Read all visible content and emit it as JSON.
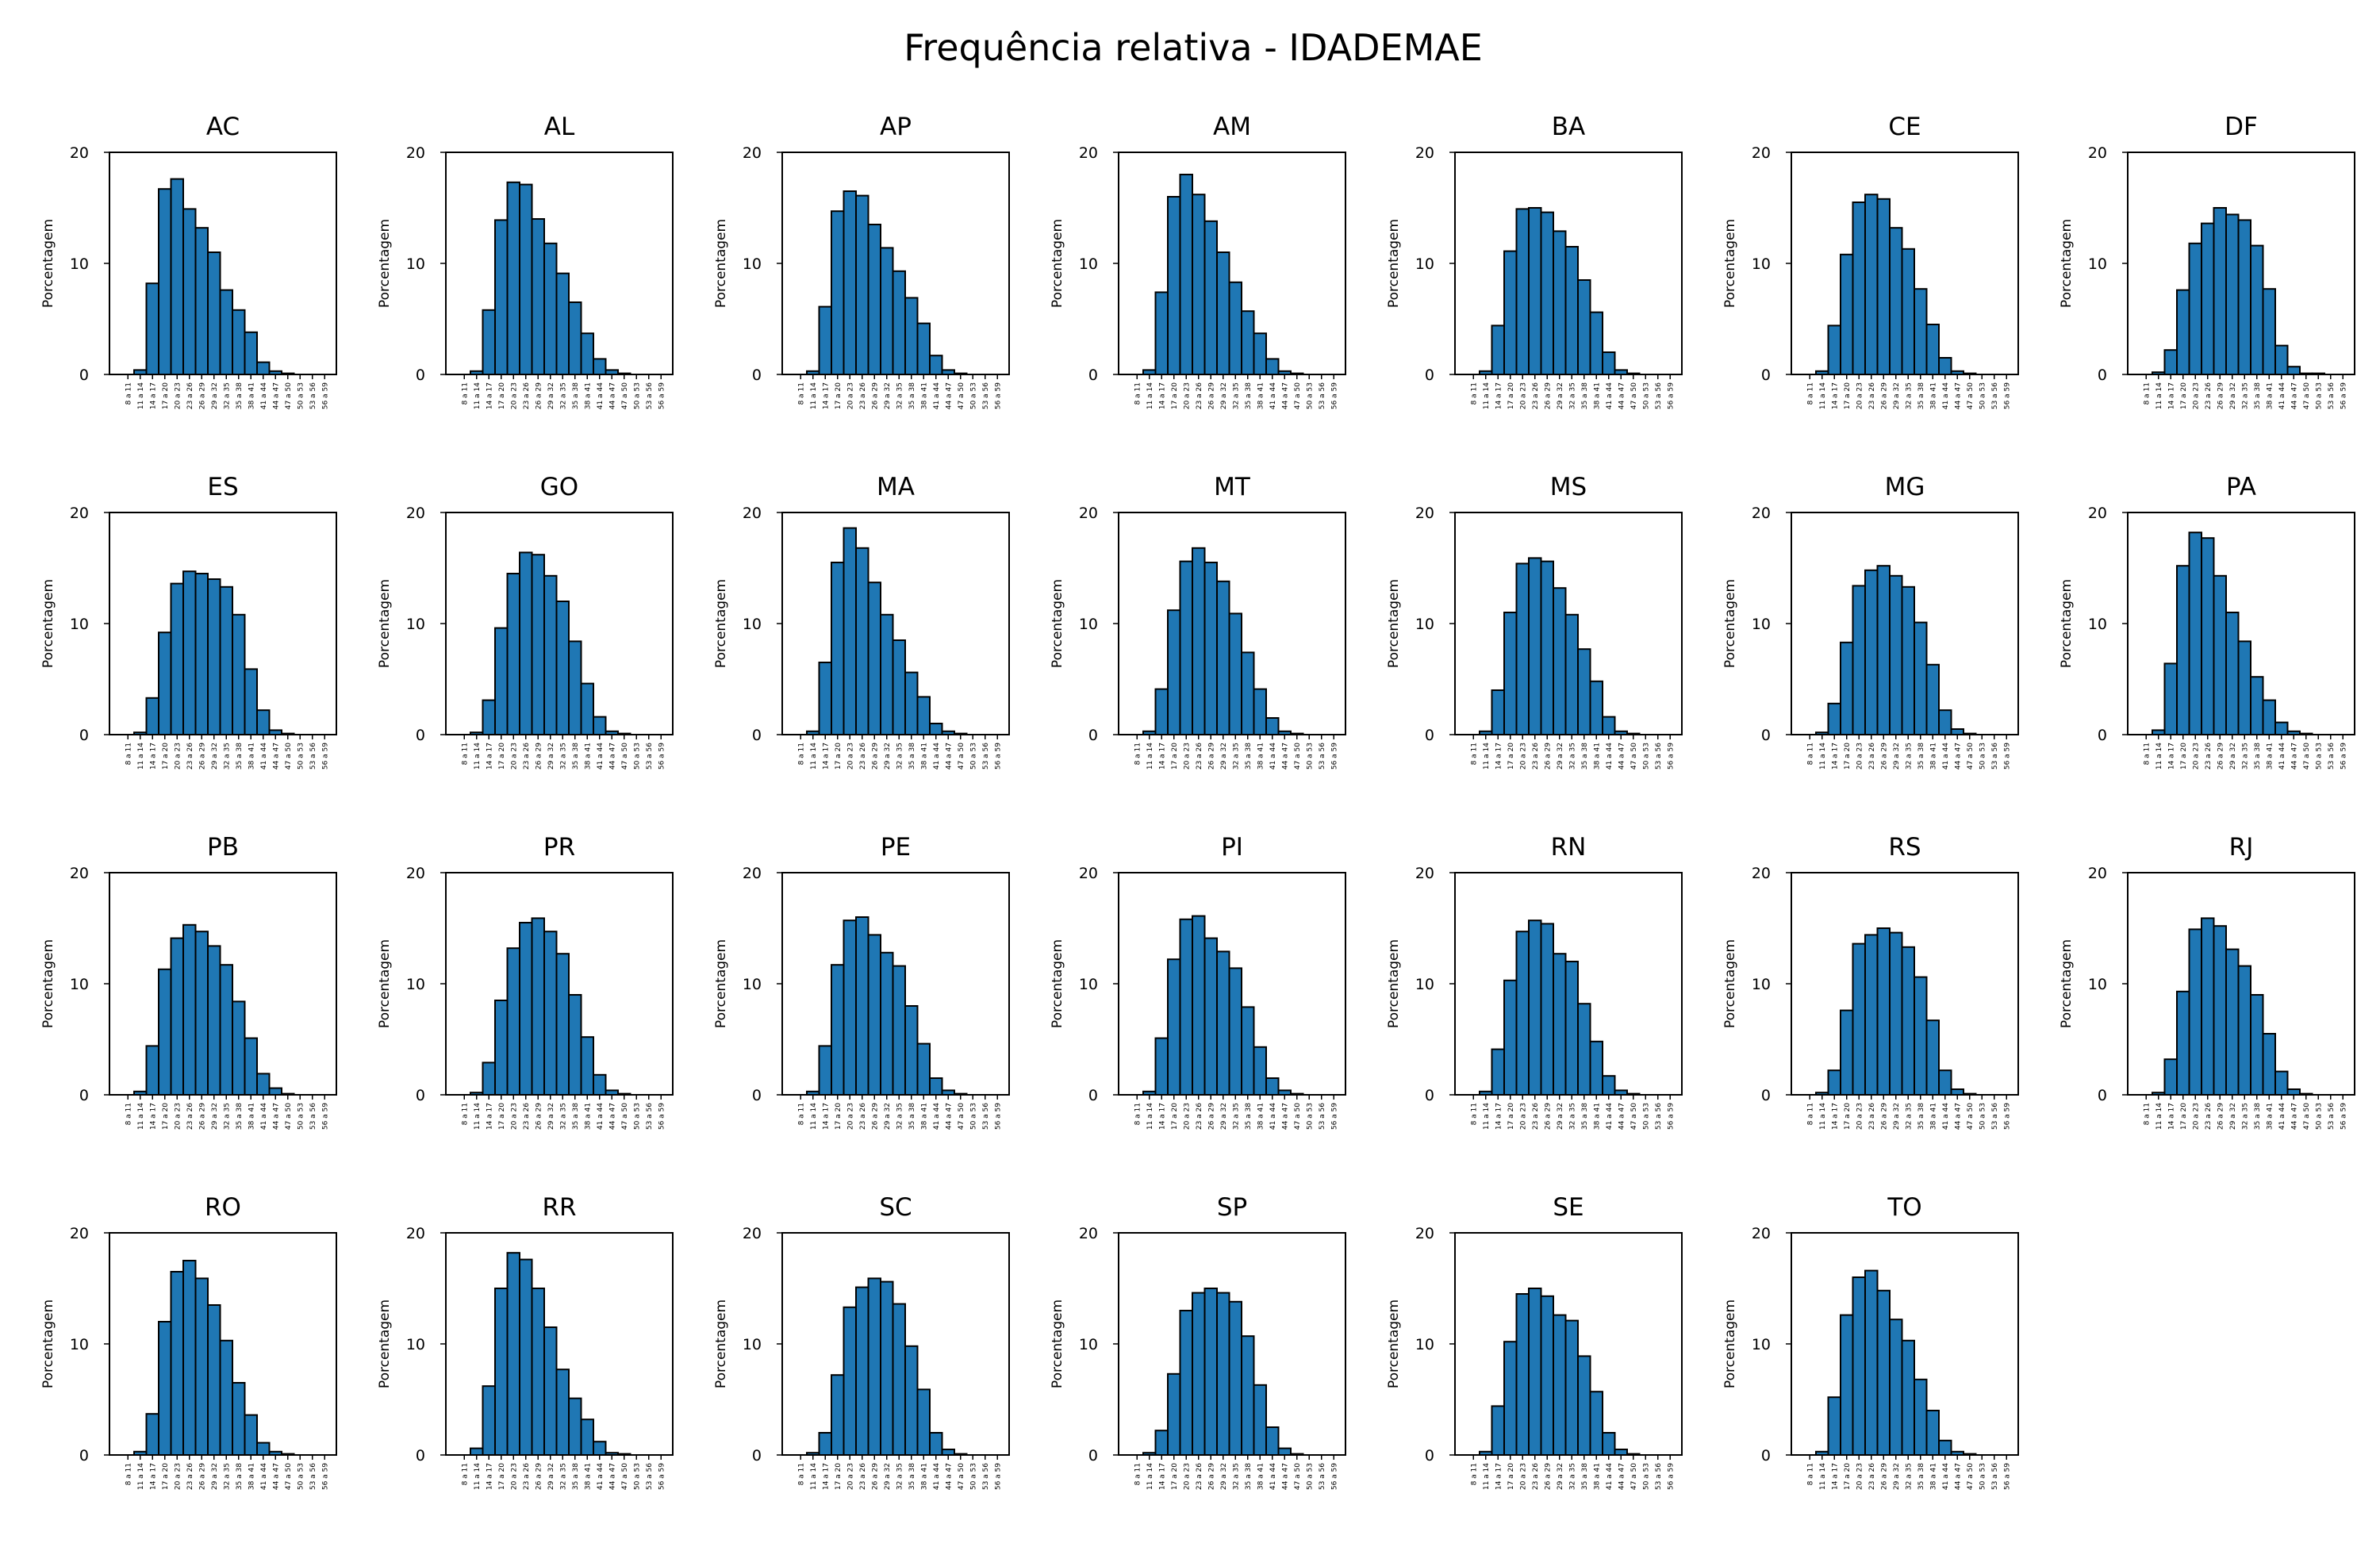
{
  "chart_data": {
    "type": "bar",
    "title": "Frequência relativa - IDADEMAE",
    "ylabel": "Porcentagem",
    "ylim": [
      0,
      20
    ],
    "yticks": [
      0,
      10,
      20
    ],
    "categories": [
      "8 a 11",
      "11 a 14",
      "14 a 17",
      "17 a 20",
      "20 a 23",
      "23 a 26",
      "26 a 29",
      "29 a 32",
      "32 a 35",
      "35 a 38",
      "38 a 41",
      "41 a 44",
      "44 a 47",
      "47 a 50",
      "50 a 53",
      "53 a 56",
      "56 a 59"
    ],
    "bar_color": "#1f77b4",
    "panels": [
      {
        "name": "AC",
        "values": [
          0.0,
          0.4,
          8.2,
          16.7,
          17.6,
          14.9,
          13.2,
          11.0,
          7.6,
          5.8,
          3.8,
          1.1,
          0.3,
          0.1,
          0.0,
          0.0,
          0.0
        ]
      },
      {
        "name": "AL",
        "values": [
          0.0,
          0.3,
          5.8,
          13.9,
          17.3,
          17.1,
          14.0,
          11.8,
          9.1,
          6.5,
          3.7,
          1.4,
          0.4,
          0.1,
          0.0,
          0.0,
          0.0
        ]
      },
      {
        "name": "AP",
        "values": [
          0.0,
          0.3,
          6.1,
          14.7,
          16.5,
          16.1,
          13.5,
          11.4,
          9.3,
          6.9,
          4.6,
          1.7,
          0.4,
          0.1,
          0.0,
          0.0,
          0.0
        ]
      },
      {
        "name": "AM",
        "values": [
          0.0,
          0.4,
          7.4,
          16.0,
          18.0,
          16.2,
          13.8,
          11.0,
          8.3,
          5.7,
          3.7,
          1.4,
          0.3,
          0.1,
          0.0,
          0.0,
          0.0
        ]
      },
      {
        "name": "BA",
        "values": [
          0.0,
          0.3,
          4.4,
          11.1,
          14.9,
          15.0,
          14.6,
          12.9,
          11.5,
          8.5,
          5.6,
          2.0,
          0.4,
          0.1,
          0.0,
          0.0,
          0.0
        ]
      },
      {
        "name": "CE",
        "values": [
          0.0,
          0.3,
          4.4,
          10.8,
          15.5,
          16.2,
          15.8,
          13.2,
          11.3,
          7.7,
          4.5,
          1.5,
          0.3,
          0.1,
          0.0,
          0.0,
          0.0
        ]
      },
      {
        "name": "DF",
        "values": [
          0.0,
          0.2,
          2.2,
          7.6,
          11.8,
          13.6,
          15.0,
          14.4,
          13.9,
          11.6,
          7.7,
          2.6,
          0.7,
          0.1,
          0.1,
          0.0,
          0.0
        ]
      },
      {
        "name": "ES",
        "values": [
          0.0,
          0.2,
          3.3,
          9.2,
          13.6,
          14.7,
          14.5,
          14.0,
          13.3,
          10.8,
          5.9,
          2.2,
          0.4,
          0.1,
          0.0,
          0.0,
          0.0
        ]
      },
      {
        "name": "GO",
        "values": [
          0.0,
          0.2,
          3.1,
          9.6,
          14.5,
          16.4,
          16.2,
          14.3,
          12.0,
          8.4,
          4.6,
          1.6,
          0.3,
          0.1,
          0.0,
          0.0,
          0.0
        ]
      },
      {
        "name": "MA",
        "values": [
          0.0,
          0.3,
          6.5,
          15.5,
          18.6,
          16.8,
          13.7,
          10.8,
          8.5,
          5.6,
          3.4,
          1.0,
          0.3,
          0.1,
          0.0,
          0.0,
          0.0
        ]
      },
      {
        "name": "MT",
        "values": [
          0.0,
          0.3,
          4.1,
          11.2,
          15.6,
          16.8,
          15.5,
          13.8,
          10.9,
          7.4,
          4.1,
          1.5,
          0.3,
          0.1,
          0.0,
          0.0,
          0.0
        ]
      },
      {
        "name": "MS",
        "values": [
          0.0,
          0.3,
          4.0,
          11.0,
          15.4,
          15.9,
          15.6,
          13.2,
          10.8,
          7.7,
          4.8,
          1.6,
          0.3,
          0.1,
          0.0,
          0.0,
          0.0
        ]
      },
      {
        "name": "MG",
        "values": [
          0.0,
          0.2,
          2.8,
          8.3,
          13.4,
          14.8,
          15.2,
          14.3,
          13.3,
          10.1,
          6.3,
          2.2,
          0.5,
          0.1,
          0.0,
          0.0,
          0.0
        ]
      },
      {
        "name": "PA",
        "values": [
          0.0,
          0.4,
          6.4,
          15.2,
          18.2,
          17.7,
          14.3,
          11.0,
          8.4,
          5.2,
          3.1,
          1.1,
          0.3,
          0.1,
          0.0,
          0.0,
          0.0
        ]
      },
      {
        "name": "PB",
        "values": [
          0.0,
          0.3,
          4.4,
          11.3,
          14.1,
          15.3,
          14.7,
          13.4,
          11.7,
          8.4,
          5.1,
          1.9,
          0.6,
          0.1,
          0.0,
          0.0,
          0.0
        ]
      },
      {
        "name": "PR",
        "values": [
          0.0,
          0.2,
          2.9,
          8.5,
          13.2,
          15.5,
          15.9,
          14.7,
          12.7,
          9.0,
          5.2,
          1.8,
          0.4,
          0.1,
          0.0,
          0.0,
          0.0
        ]
      },
      {
        "name": "PE",
        "values": [
          0.0,
          0.3,
          4.4,
          11.7,
          15.7,
          16.0,
          14.4,
          12.8,
          11.6,
          8.0,
          4.6,
          1.5,
          0.4,
          0.1,
          0.0,
          0.0,
          0.0
        ]
      },
      {
        "name": "PI",
        "values": [
          0.0,
          0.3,
          5.1,
          12.2,
          15.8,
          16.1,
          14.1,
          12.9,
          11.4,
          7.9,
          4.3,
          1.5,
          0.4,
          0.1,
          0.0,
          0.0,
          0.0
        ]
      },
      {
        "name": "RN",
        "values": [
          0.0,
          0.3,
          4.1,
          10.3,
          14.7,
          15.7,
          15.4,
          12.7,
          12.0,
          8.2,
          4.8,
          1.7,
          0.4,
          0.1,
          0.0,
          0.0,
          0.0
        ]
      },
      {
        "name": "RS",
        "values": [
          0.0,
          0.2,
          2.2,
          7.6,
          13.6,
          14.4,
          15.0,
          14.6,
          13.3,
          10.6,
          6.7,
          2.2,
          0.5,
          0.1,
          0.0,
          0.0,
          0.0
        ]
      },
      {
        "name": "RJ",
        "values": [
          0.0,
          0.2,
          3.2,
          9.3,
          14.9,
          15.9,
          15.2,
          13.1,
          11.6,
          9.0,
          5.5,
          2.1,
          0.5,
          0.1,
          0.0,
          0.0,
          0.0
        ]
      },
      {
        "name": "RO",
        "values": [
          0.0,
          0.3,
          3.7,
          12.0,
          16.5,
          17.5,
          15.9,
          13.5,
          10.3,
          6.5,
          3.6,
          1.1,
          0.3,
          0.1,
          0.0,
          0.0,
          0.0
        ]
      },
      {
        "name": "RR",
        "values": [
          0.0,
          0.6,
          6.2,
          15.0,
          18.2,
          17.6,
          15.0,
          11.5,
          7.7,
          5.1,
          3.2,
          1.2,
          0.2,
          0.1,
          0.0,
          0.0,
          0.0
        ]
      },
      {
        "name": "SC",
        "values": [
          0.0,
          0.2,
          2.0,
          7.2,
          13.3,
          15.1,
          15.9,
          15.6,
          13.6,
          9.8,
          5.9,
          2.0,
          0.5,
          0.1,
          0.0,
          0.0,
          0.0
        ]
      },
      {
        "name": "SP",
        "values": [
          0.0,
          0.2,
          2.2,
          7.3,
          13.0,
          14.6,
          15.0,
          14.6,
          13.8,
          10.7,
          6.3,
          2.5,
          0.6,
          0.1,
          0.0,
          0.0,
          0.0
        ]
      },
      {
        "name": "SE",
        "values": [
          0.0,
          0.3,
          4.4,
          10.2,
          14.5,
          15.0,
          14.3,
          12.6,
          12.1,
          8.9,
          5.7,
          2.0,
          0.5,
          0.1,
          0.0,
          0.0,
          0.0
        ]
      },
      {
        "name": "TO",
        "values": [
          0.0,
          0.3,
          5.2,
          12.6,
          16.0,
          16.6,
          14.8,
          12.2,
          10.3,
          6.8,
          4.0,
          1.3,
          0.3,
          0.1,
          0.0,
          0.0,
          0.0
        ]
      }
    ]
  }
}
